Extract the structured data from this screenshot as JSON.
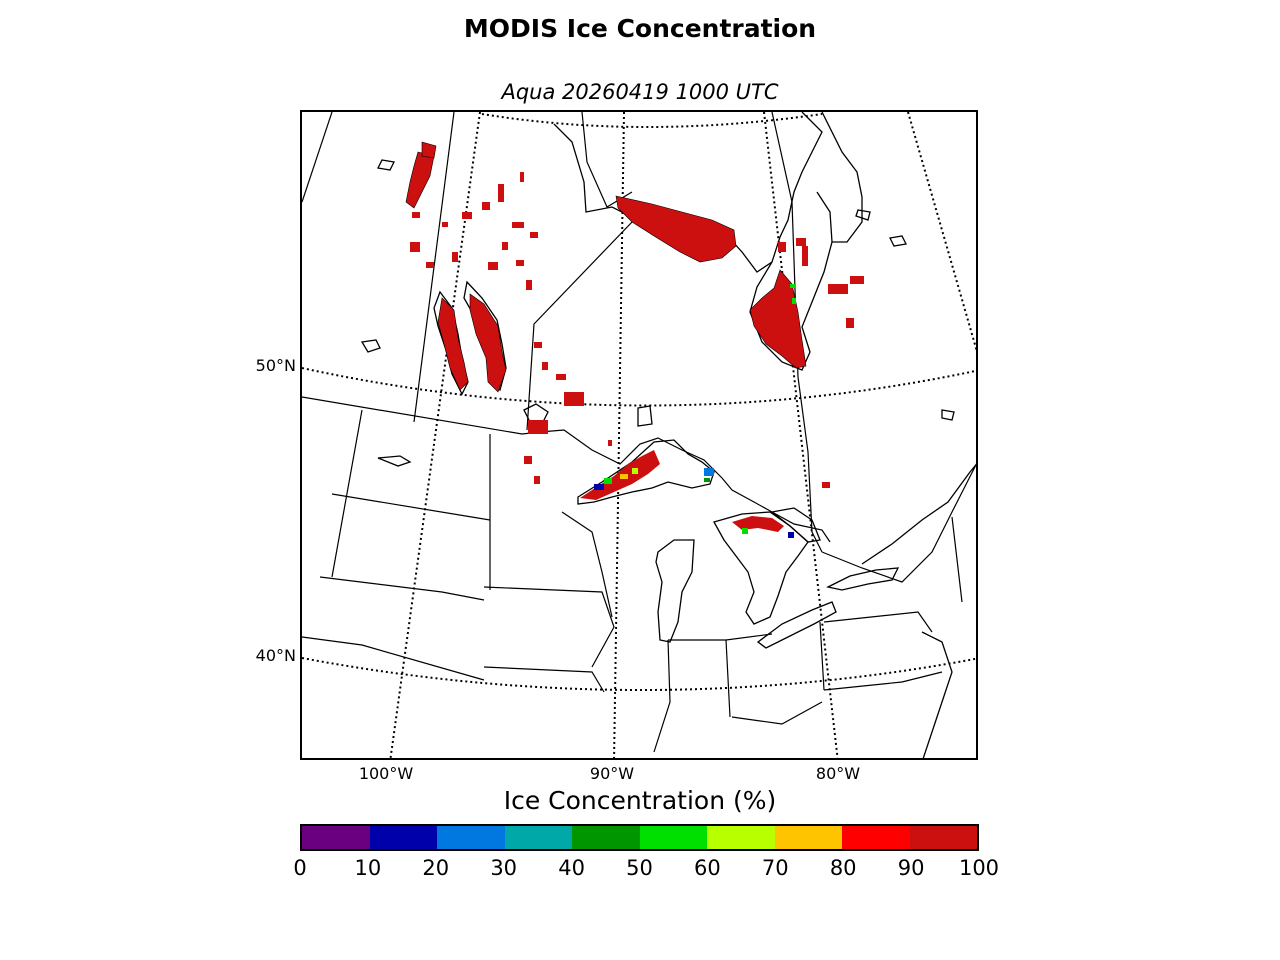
{
  "title": "MODIS Ice Concentration",
  "subtitle": "Aqua 20260419 1000 UTC",
  "map": {
    "lat_labels": [
      "50°N",
      "40°N"
    ],
    "lon_labels": [
      "100°W",
      "90°W",
      "80°W"
    ]
  },
  "colorbar": {
    "title": "Ice Concentration (%)",
    "ticks": [
      "0",
      "10",
      "20",
      "30",
      "40",
      "50",
      "60",
      "70",
      "80",
      "90",
      "100"
    ],
    "colors": [
      "#6a0080",
      "#0000aa",
      "#0078e0",
      "#00a8a8",
      "#009600",
      "#00e000",
      "#b8ff00",
      "#ffc400",
      "#ff0000",
      "#cc1010"
    ]
  },
  "ice_color": "#cc1010"
}
